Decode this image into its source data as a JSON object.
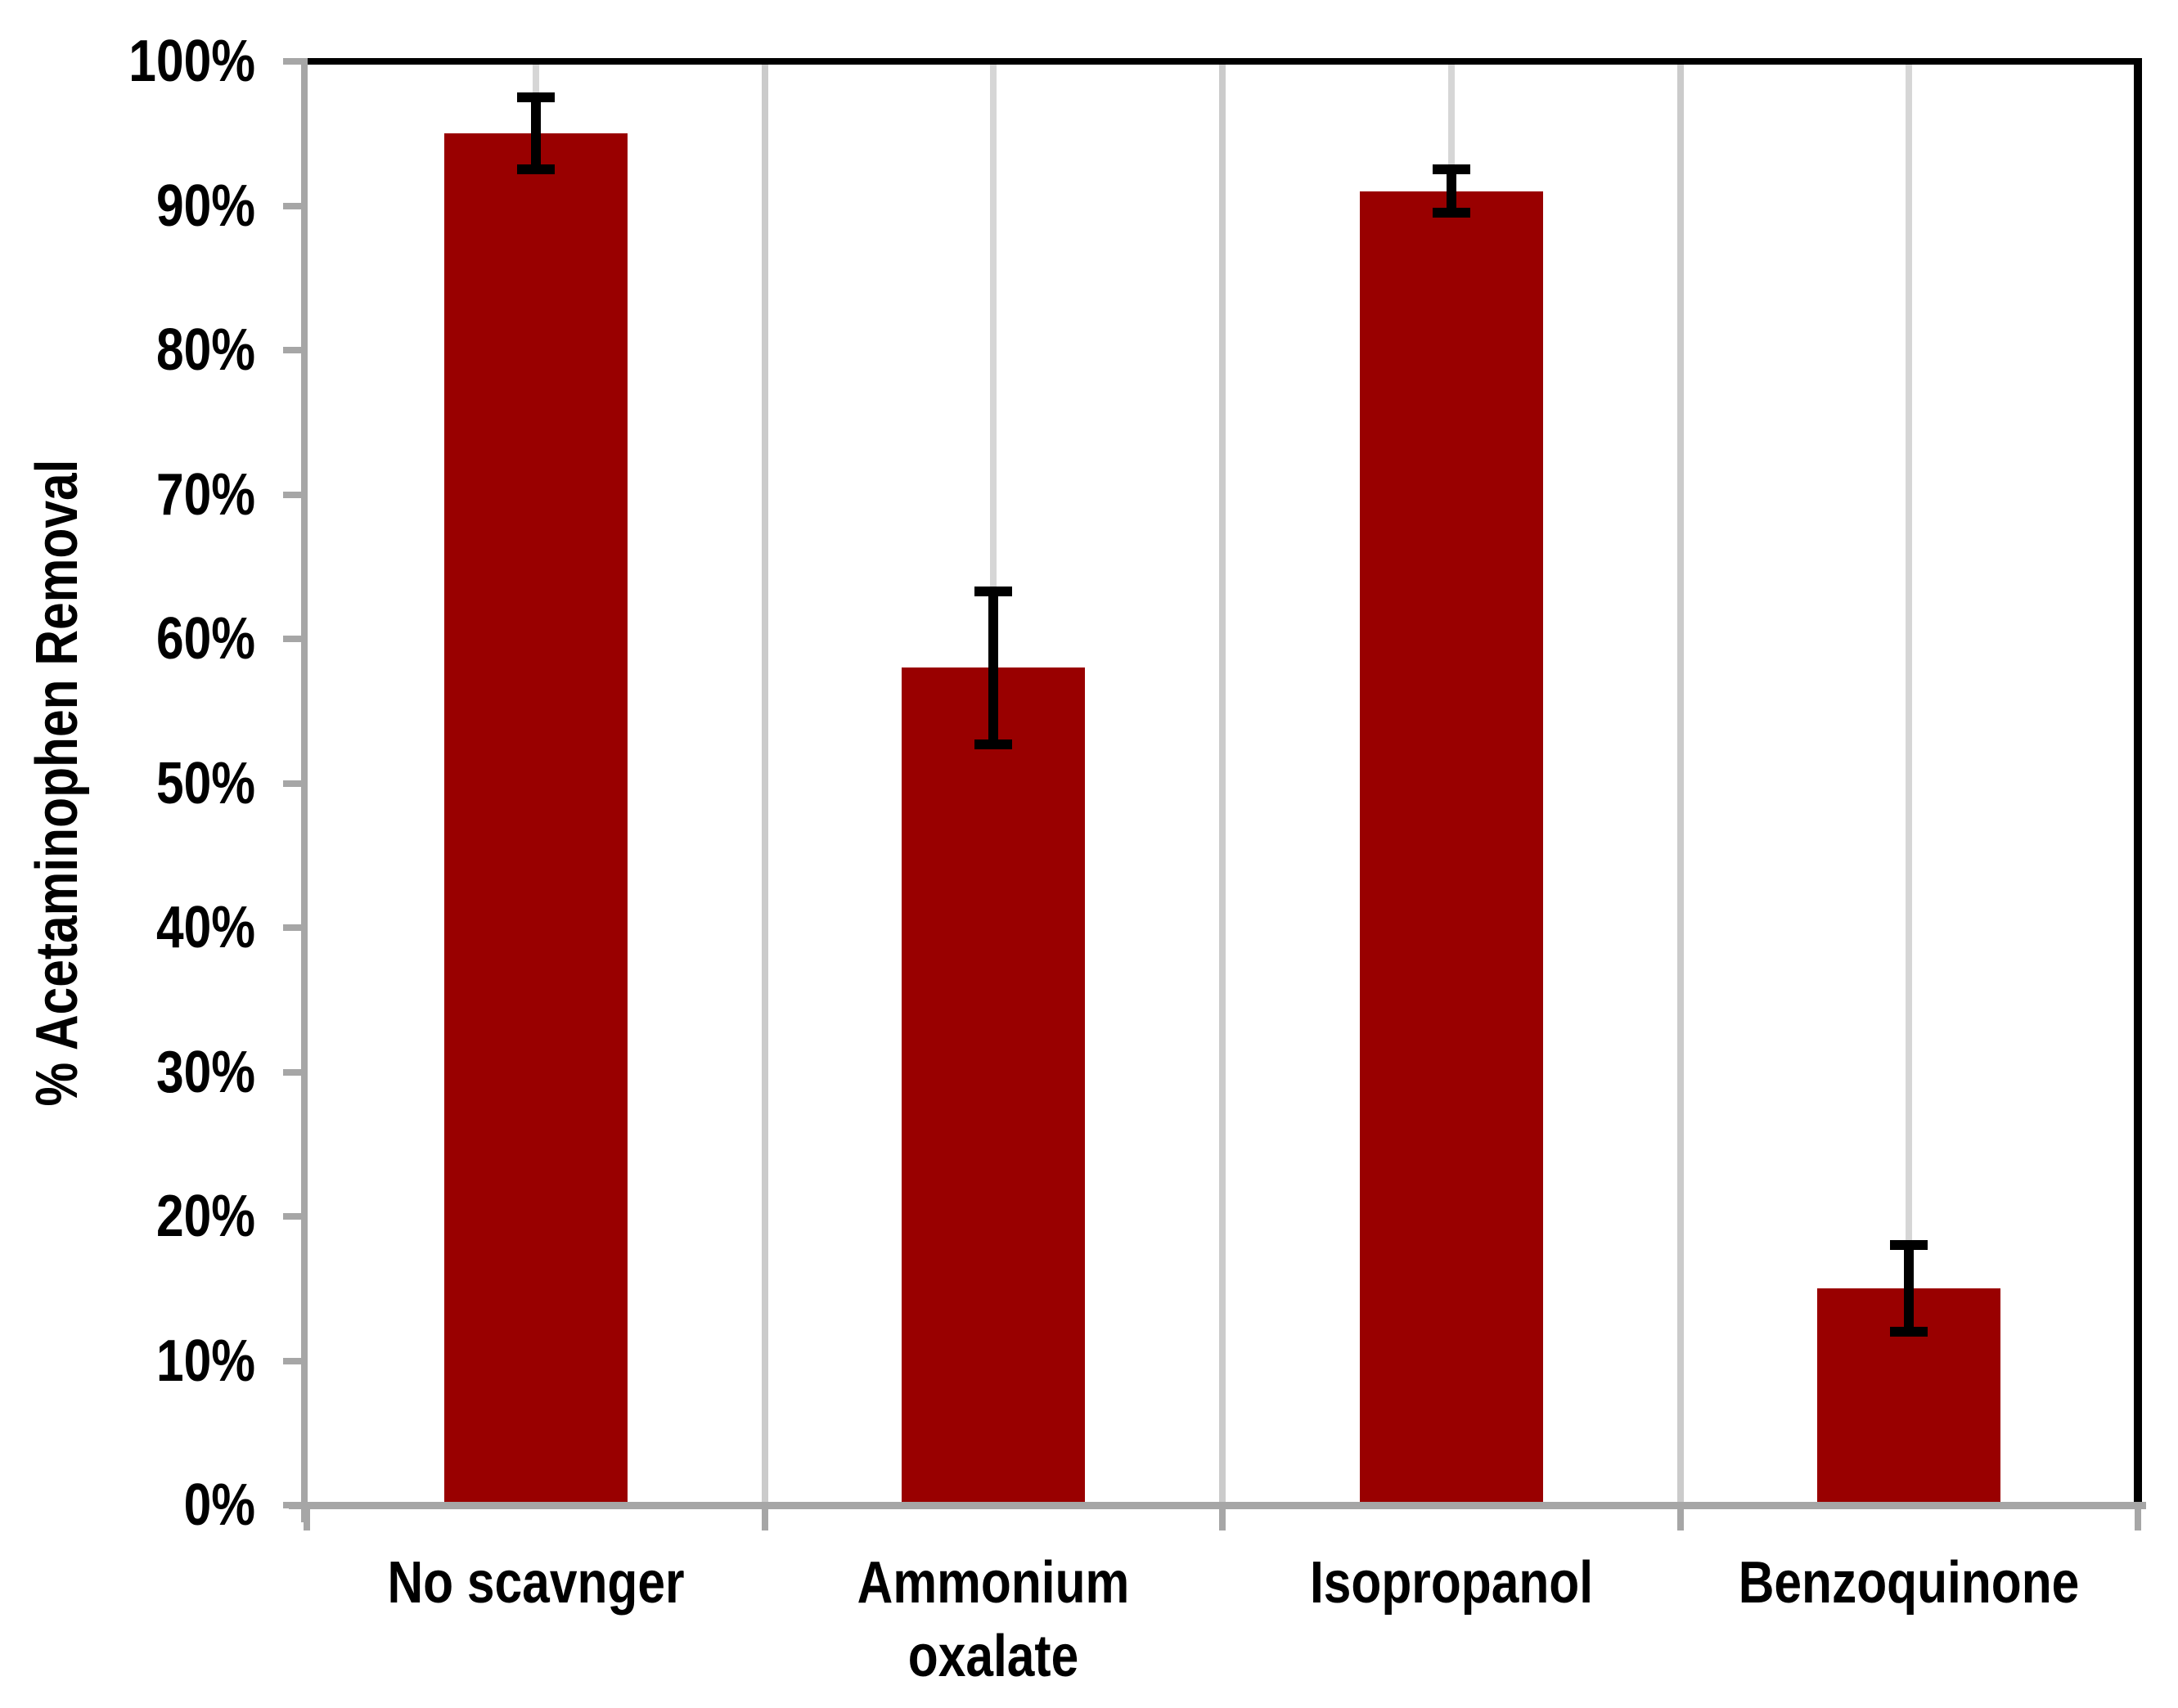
{
  "figure": {
    "background": "#FFFFFF"
  },
  "chart_data": {
    "type": "bar",
    "title": "",
    "categories": [
      "No scavnger",
      "Ammonium\noxalate",
      "Isopropanol",
      "Benzoquinone"
    ],
    "values": [
      95,
      58,
      91,
      15
    ],
    "error_bars": {
      "plus": [
        2.5,
        5.3,
        1.5,
        3.0
      ],
      "minus": [
        2.5,
        5.3,
        1.5,
        3.0
      ]
    },
    "xlabel": "",
    "ylabel": "% Acetaminophen Removal",
    "ylim": [
      0,
      100
    ],
    "ytick_step": 10,
    "ytick_labels": [
      "0%",
      "10%",
      "20%",
      "30%",
      "40%",
      "50%",
      "60%",
      "70%",
      "80%",
      "90%",
      "100%"
    ],
    "legend_position": "none",
    "grid": "vertical category gridlines only, no horizontal gridlines",
    "bar_gap_fraction": 0.6,
    "colors": {
      "bar_fill": "#990000",
      "axis_line": "#A6A6A6",
      "tick_mark": "#A6A6A6",
      "gridline_boundary": "#CBCBCB",
      "gridline_center": "#D6D6D6",
      "plot_border": "#000000",
      "error_bar": "#000000",
      "text": "#000000"
    }
  }
}
